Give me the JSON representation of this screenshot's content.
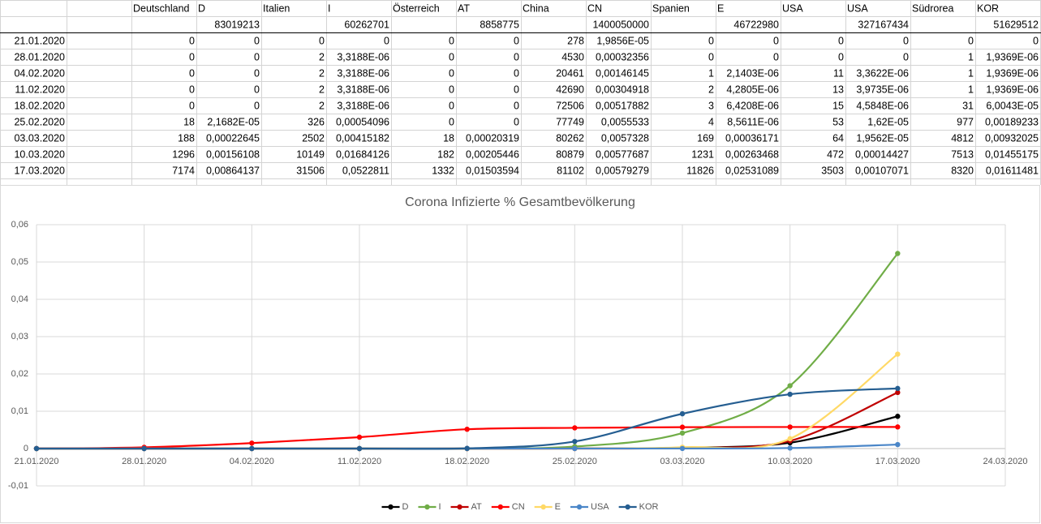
{
  "table": {
    "header": [
      "Deutschland",
      "D",
      "Italien",
      "I",
      "Österreich",
      "AT",
      "China",
      "CN",
      "Spanien",
      "E",
      "USA",
      "USA",
      "Südrorea",
      "KOR"
    ],
    "populations": [
      "83019213",
      "60262701",
      "8858775",
      "1400050000",
      "46722980",
      "327167434",
      "51629512"
    ],
    "rows": [
      {
        "date": "21.01.2020",
        "cells": [
          "0",
          "0",
          "0",
          "0",
          "0",
          "0",
          "278",
          "1,9856E-05",
          "0",
          "0",
          "0",
          "0",
          "0",
          "0"
        ]
      },
      {
        "date": "28.01.2020",
        "cells": [
          "0",
          "0",
          "2",
          "3,3188E-06",
          "0",
          "0",
          "4530",
          "0,00032356",
          "0",
          "0",
          "0",
          "0",
          "1",
          "1,9369E-06"
        ]
      },
      {
        "date": "04.02.2020",
        "cells": [
          "0",
          "0",
          "2",
          "3,3188E-06",
          "0",
          "0",
          "20461",
          "0,00146145",
          "1",
          "2,1403E-06",
          "11",
          "3,3622E-06",
          "1",
          "1,9369E-06"
        ]
      },
      {
        "date": "11.02.2020",
        "cells": [
          "0",
          "0",
          "2",
          "3,3188E-06",
          "0",
          "0",
          "42690",
          "0,00304918",
          "2",
          "4,2805E-06",
          "13",
          "3,9735E-06",
          "1",
          "1,9369E-06"
        ]
      },
      {
        "date": "18.02.2020",
        "cells": [
          "0",
          "0",
          "2",
          "3,3188E-06",
          "0",
          "0",
          "72506",
          "0,00517882",
          "3",
          "6,4208E-06",
          "15",
          "4,5848E-06",
          "31",
          "6,0043E-05"
        ]
      },
      {
        "date": "25.02.2020",
        "cells": [
          "18",
          "2,1682E-05",
          "326",
          "0,00054096",
          "0",
          "0",
          "77749",
          "0,0055533",
          "4",
          "8,5611E-06",
          "53",
          "1,62E-05",
          "977",
          "0,00189233"
        ]
      },
      {
        "date": "03.03.2020",
        "cells": [
          "188",
          "0,00022645",
          "2502",
          "0,00415182",
          "18",
          "0,00020319",
          "80262",
          "0,0057328",
          "169",
          "0,00036171",
          "64",
          "1,9562E-05",
          "4812",
          "0,00932025"
        ]
      },
      {
        "date": "10.03.2020",
        "cells": [
          "1296",
          "0,00156108",
          "10149",
          "0,01684126",
          "182",
          "0,00205446",
          "80879",
          "0,00577687",
          "1231",
          "0,00263468",
          "472",
          "0,00014427",
          "7513",
          "0,01455175"
        ]
      },
      {
        "date": "17.03.2020",
        "cells": [
          "7174",
          "0,00864137",
          "31506",
          "0,0522811",
          "1332",
          "0,01503594",
          "81102",
          "0,00579279",
          "11826",
          "0,02531089",
          "3503",
          "0,00107071",
          "8320",
          "0,01611481"
        ]
      }
    ]
  },
  "chart_data": {
    "type": "line",
    "title": "Corona Infizierte % Gesamtbevölkerung",
    "categories": [
      "21.01.2020",
      "28.01.2020",
      "04.02.2020",
      "11.02.2020",
      "18.02.2020",
      "25.02.2020",
      "03.03.2020",
      "10.03.2020",
      "17.03.2020",
      "24.03.2020"
    ],
    "series": [
      {
        "name": "D",
        "color": "#000000",
        "values": [
          0,
          0,
          0,
          0,
          0,
          2.1682e-05,
          0.00022645,
          0.00156108,
          0.00864137,
          null
        ]
      },
      {
        "name": "I",
        "color": "#70ad47",
        "values": [
          0,
          3.3188e-06,
          3.3188e-06,
          3.3188e-06,
          3.3188e-06,
          0.00054096,
          0.00415182,
          0.01684126,
          0.0522811,
          null
        ]
      },
      {
        "name": "AT",
        "color": "#c00000",
        "values": [
          0,
          0,
          0,
          0,
          0,
          0,
          0.00020319,
          0.00205446,
          0.01503594,
          null
        ]
      },
      {
        "name": "CN",
        "color": "#ff0000",
        "values": [
          1.9856e-05,
          0.00032356,
          0.00146145,
          0.00304918,
          0.00517882,
          0.0055533,
          0.0057328,
          0.00577687,
          0.00579279,
          null
        ]
      },
      {
        "name": "E",
        "color": "#ffd966",
        "values": [
          0,
          0,
          2.1403e-06,
          4.2805e-06,
          6.4208e-06,
          8.5611e-06,
          0.00036171,
          0.00263468,
          0.02531089,
          null
        ]
      },
      {
        "name": "USA",
        "color": "#4a86c8",
        "values": [
          0,
          0,
          3.3622e-06,
          3.9735e-06,
          4.5848e-06,
          1.62e-05,
          1.9562e-05,
          0.00014427,
          0.00107071,
          null
        ]
      },
      {
        "name": "KOR",
        "color": "#255e91",
        "values": [
          0,
          1.9369e-06,
          1.9369e-06,
          1.9369e-06,
          6.0043e-05,
          0.00189233,
          0.00932025,
          0.01455175,
          0.01611481,
          null
        ]
      }
    ],
    "ylim": [
      -0.01,
      0.06
    ],
    "yticks": [
      {
        "value": -0.01,
        "label": "-0,01"
      },
      0,
      {
        "value": 0.01,
        "label": "0,01"
      },
      {
        "value": 0.02,
        "label": "0,02"
      },
      {
        "value": 0.03,
        "label": "0,03"
      },
      {
        "value": 0.04,
        "label": "0,04"
      },
      {
        "value": 0.05,
        "label": "0,05"
      },
      {
        "value": 0.06,
        "label": "0,06"
      }
    ],
    "grid": true,
    "legend": "bottom"
  }
}
